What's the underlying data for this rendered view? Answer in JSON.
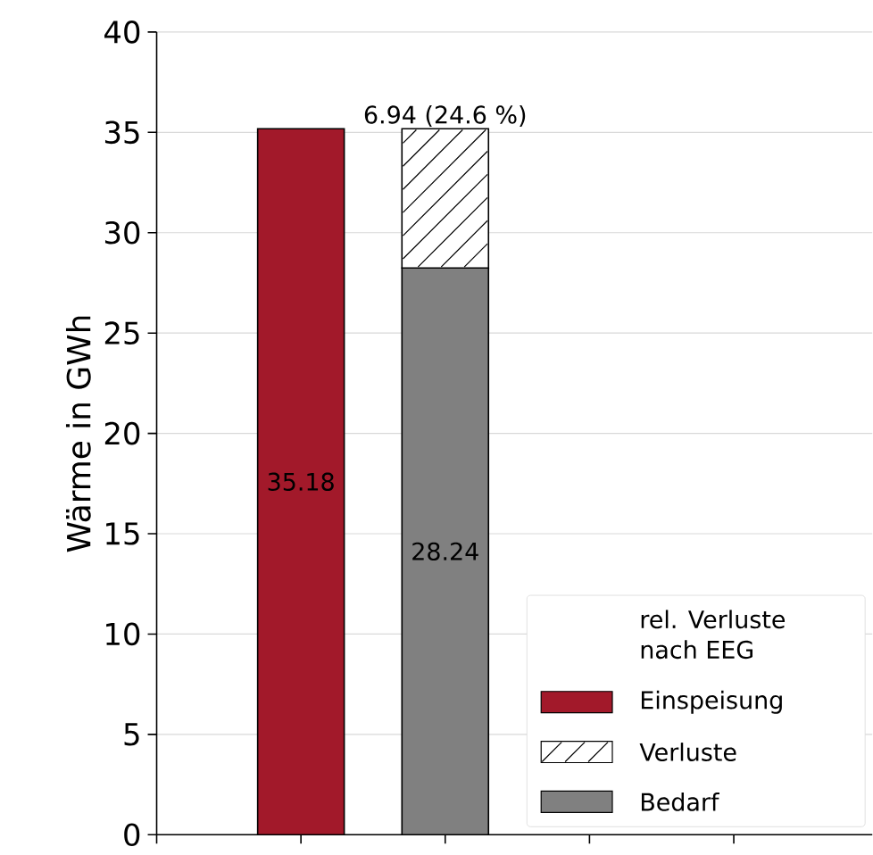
{
  "chart_data": {
    "type": "bar",
    "stacked": true,
    "ylabel": "Wärme in GWh",
    "legend_title": "rel. Verluste\nnach EEG",
    "categories": [
      null,
      null,
      null,
      null,
      null
    ],
    "series": [
      {
        "name": "Einspeisung",
        "color": "#a2192a",
        "values": [
          null,
          35.18,
          null,
          null,
          null
        ],
        "value_labels": [
          null,
          "35.18",
          null,
          null,
          null
        ]
      },
      {
        "name": "Bedarf",
        "color": "#808080",
        "values": [
          null,
          null,
          28.24,
          null,
          null
        ],
        "value_labels": [
          null,
          null,
          "28.24",
          null,
          null
        ]
      },
      {
        "name": "Verluste",
        "color": "#ffffff",
        "values": [
          null,
          null,
          6.94,
          null,
          null
        ],
        "value_labels": [
          null,
          null,
          "6.94 (24.6 %)",
          null,
          null
        ]
      }
    ],
    "ylim": [
      0,
      40
    ],
    "yticks": [
      0,
      5,
      10,
      15,
      20,
      25,
      30,
      35,
      40
    ],
    "grid": "y",
    "legend": "bottom right"
  }
}
